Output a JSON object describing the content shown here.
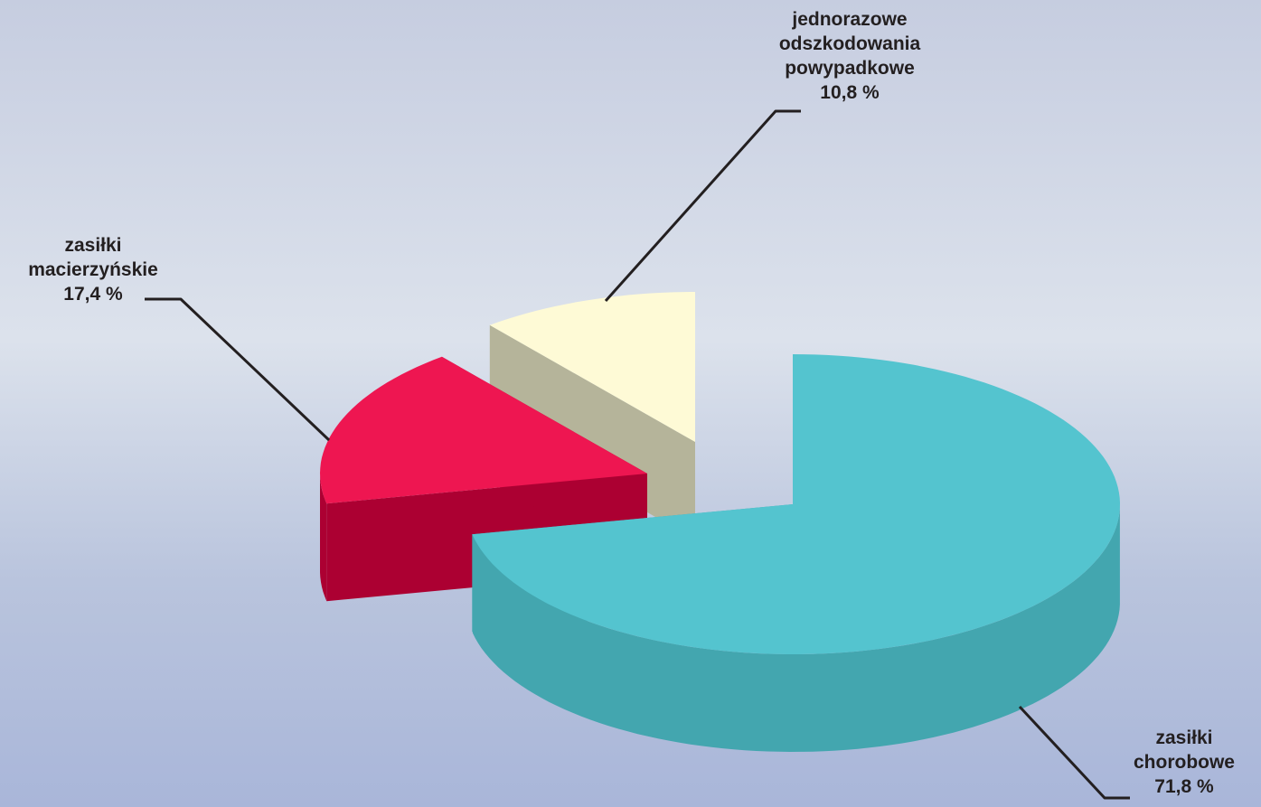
{
  "chart_data": {
    "type": "pie",
    "three_d": true,
    "exploded": true,
    "title": "",
    "legend": "none",
    "slices": [
      {
        "label_lines": [
          "zasiłki",
          "chorobowe"
        ],
        "value": 71.8,
        "value_text": "71,8 %",
        "color_top": "#54c4cf",
        "color_side": "#43a6af"
      },
      {
        "label_lines": [
          "zasiłki",
          "macierzyńskie"
        ],
        "value": 17.4,
        "value_text": "17,4 %",
        "color_top": "#ee1651",
        "color_side": "#ac0032"
      },
      {
        "label_lines": [
          "jednorazowe",
          "odszkodowania",
          "powypadkowe"
        ],
        "value": 10.8,
        "value_text": "10,8 %",
        "color_top": "#fefad6",
        "color_side": "#b5b49a"
      }
    ]
  }
}
